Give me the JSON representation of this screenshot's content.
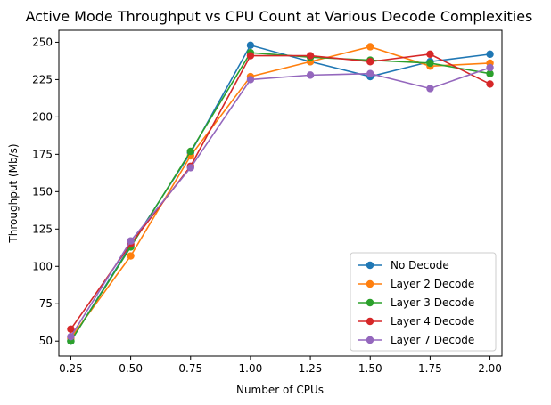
{
  "chart_data": {
    "type": "line",
    "title": "Active Mode Throughput vs CPU Count at Various Decode Complexities",
    "xlabel": "Number of CPUs",
    "ylabel": "Throughput (Mb/s)",
    "x": [
      0.25,
      0.5,
      0.75,
      1.0,
      1.25,
      1.5,
      1.75,
      2.0
    ],
    "x_tick_labels": [
      "0.25",
      "0.50",
      "0.75",
      "1.00",
      "1.25",
      "1.50",
      "1.75",
      "2.00"
    ],
    "y_ticks": [
      50,
      75,
      100,
      125,
      150,
      175,
      200,
      225,
      250
    ],
    "xlim": [
      0.2,
      2.05
    ],
    "ylim": [
      40,
      258
    ],
    "grid": false,
    "legend_position": "lower-right",
    "series": [
      {
        "name": "No Decode",
        "color": "#1f77b4",
        "values": [
          50,
          114,
          176,
          248,
          237,
          227,
          237,
          242
        ]
      },
      {
        "name": "Layer 2 Decode",
        "color": "#ff7f0e",
        "values": [
          52,
          107,
          174,
          227,
          237,
          247,
          234,
          236
        ]
      },
      {
        "name": "Layer 3 Decode",
        "color": "#2ca02c",
        "values": [
          50,
          113,
          177,
          243,
          240,
          238,
          236,
          229
        ]
      },
      {
        "name": "Layer 4 Decode",
        "color": "#d62728",
        "values": [
          58,
          115,
          167,
          241,
          241,
          237,
          242,
          222
        ]
      },
      {
        "name": "Layer 7 Decode",
        "color": "#9467bd",
        "values": [
          53,
          117,
          166,
          225,
          228,
          229,
          219,
          233
        ]
      }
    ]
  }
}
